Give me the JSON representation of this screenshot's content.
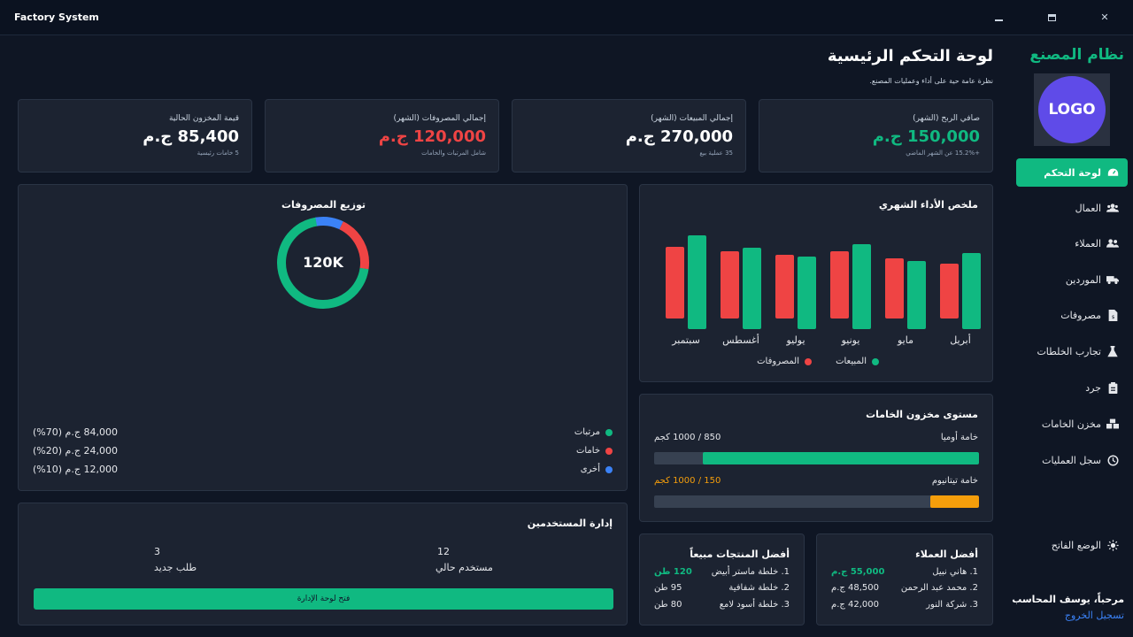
{
  "window": {
    "title": "Factory System",
    "minimize_label": "",
    "maximize_label": "",
    "close_label": "✕"
  },
  "sidebar": {
    "brand": "نظام المصنع",
    "logo_text": "LOGO",
    "items": [
      {
        "label": "لوحة التحكم",
        "icon": "dashboard-icon",
        "active": true
      },
      {
        "label": "العمال",
        "icon": "workers-icon"
      },
      {
        "label": "العملاء",
        "icon": "clients-icon"
      },
      {
        "label": "الموردين",
        "icon": "truck-icon"
      },
      {
        "label": "مصروفات",
        "icon": "invoice-icon"
      },
      {
        "label": "تجارب الخلطات",
        "icon": "flask-icon"
      },
      {
        "label": "جرد",
        "icon": "clipboard-icon"
      },
      {
        "label": "مخزن الخامات",
        "icon": "warehouse-icon"
      },
      {
        "label": "سجل العمليات",
        "icon": "history-icon"
      }
    ],
    "theme_toggle": "الوضع الفاتح",
    "welcome": "مرحباً، يوسف المحاسب",
    "logout": "تسجيل الخروج"
  },
  "header": {
    "title": "لوحة التحكم الرئيسية",
    "subtitle": "نظرة عامة حية على أداء وعمليات المصنع."
  },
  "kpis": [
    {
      "label": "صافي الربح (الشهر)",
      "value": "150,000 ج.م",
      "sub": "+15.2% عن الشهر الماضي",
      "color": "#10b981"
    },
    {
      "label": "إجمالي المبيعات (الشهر)",
      "value": "270,000 ج.م",
      "sub": "35 عملية بيع",
      "color": "#ffffff"
    },
    {
      "label": "إجمالي المصروفات (الشهر)",
      "value": "120,000 ج.م",
      "sub": "شامل المرتبات والخامات",
      "color": "#ef4444"
    },
    {
      "label": "قيمة المخزون الحالية",
      "value": "85,400 ج.م",
      "sub": "5 خامات رئيسية",
      "color": "#ffffff"
    }
  ],
  "monthly": {
    "title": "ملخص الأداء الشهري",
    "chart_data": {
      "type": "bar",
      "categories": [
        "أبريل",
        "مايو",
        "يونيو",
        "يوليو",
        "أغسطس",
        "سبتمبر"
      ],
      "series": [
        {
          "name": "المبيعات",
          "color": "#10b981",
          "values": [
            86,
            77,
            96,
            82,
            92,
            106
          ]
        },
        {
          "name": "المصروفات",
          "color": "#ef4444",
          "values": [
            62,
            68,
            76,
            72,
            76,
            81
          ]
        }
      ]
    },
    "legend_sales": "المبيعات",
    "legend_expenses": "المصروفات"
  },
  "expenses": {
    "title": "توزيع المصروفات",
    "center_label": "120K",
    "chart_data": {
      "type": "pie",
      "labels": [
        "مرتبات",
        "خامات",
        "أخرى"
      ],
      "values": [
        70,
        20,
        10
      ],
      "colors": [
        "#10b981",
        "#ef4444",
        "#3b82f6"
      ]
    },
    "rows": [
      {
        "label": "مرتبات",
        "amount": "84,000 ج.م (70%)",
        "color": "#10b981"
      },
      {
        "label": "خامات",
        "amount": "24,000 ج.م (20%)",
        "color": "#ef4444"
      },
      {
        "label": "أخرى",
        "amount": "12,000 ج.م (10%)",
        "color": "#3b82f6"
      }
    ]
  },
  "inventory": {
    "title": "مستوى مخزون الخامات",
    "items": [
      {
        "name": "خامة أوميا",
        "qty": "850 / 1000 كجم",
        "level": 0.85,
        "color": "#10b981",
        "qty_color": "#e5e7eb"
      },
      {
        "name": "خامة تيتانيوم",
        "qty": "150 / 1000 كجم",
        "level": 0.15,
        "color": "#f59e0b",
        "qty_color": "#f59e0b"
      }
    ]
  },
  "users": {
    "title": "إدارة المستخدمين",
    "current_count": "12",
    "current_label": "مستخدم حالي",
    "new_count": "3",
    "new_label": "طلب جديد",
    "button": "فتح لوحة الإدارة"
  },
  "top_clients": {
    "title": "أفضل العملاء",
    "rows": [
      {
        "name": "1. هاني نبيل",
        "value": "55,000 ج.م",
        "highlight": true
      },
      {
        "name": "2. محمد عبد الرحمن",
        "value": "48,500 ج.م"
      },
      {
        "name": "3. شركة النور",
        "value": "42,000 ج.م"
      }
    ]
  },
  "top_products": {
    "title": "أفضل المنتجات مبيعاً",
    "rows": [
      {
        "name": "1. خلطة ماستر أبيض",
        "value": "120 طن",
        "highlight": true
      },
      {
        "name": "2. خلطة شفافية",
        "value": "95 طن"
      },
      {
        "name": "3. خلطة أسود لامع",
        "value": "80 طن"
      }
    ]
  }
}
